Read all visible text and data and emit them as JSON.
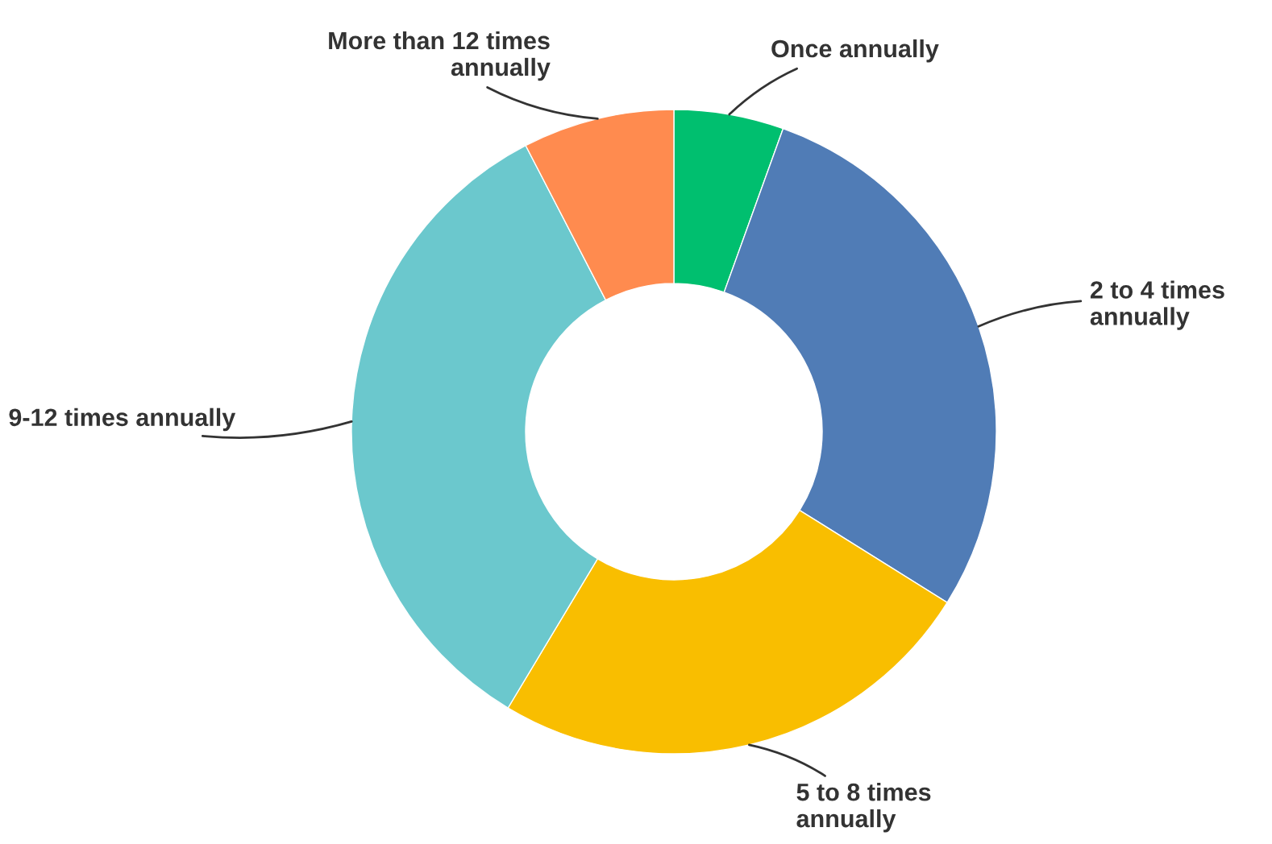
{
  "chart_data": {
    "type": "donut",
    "categories": [
      "Once annually",
      "2 to 4 times\nannually",
      "5 to 8 times\nannually",
      "9-12 times annually",
      "More than 12 times\nannually"
    ],
    "values": [
      5.5,
      28.4,
      24.7,
      33.8,
      7.6
    ],
    "colors": [
      "#00bf6f",
      "#507cb6",
      "#f9be00",
      "#6bc8cd",
      "#ff8b4f"
    ]
  }
}
